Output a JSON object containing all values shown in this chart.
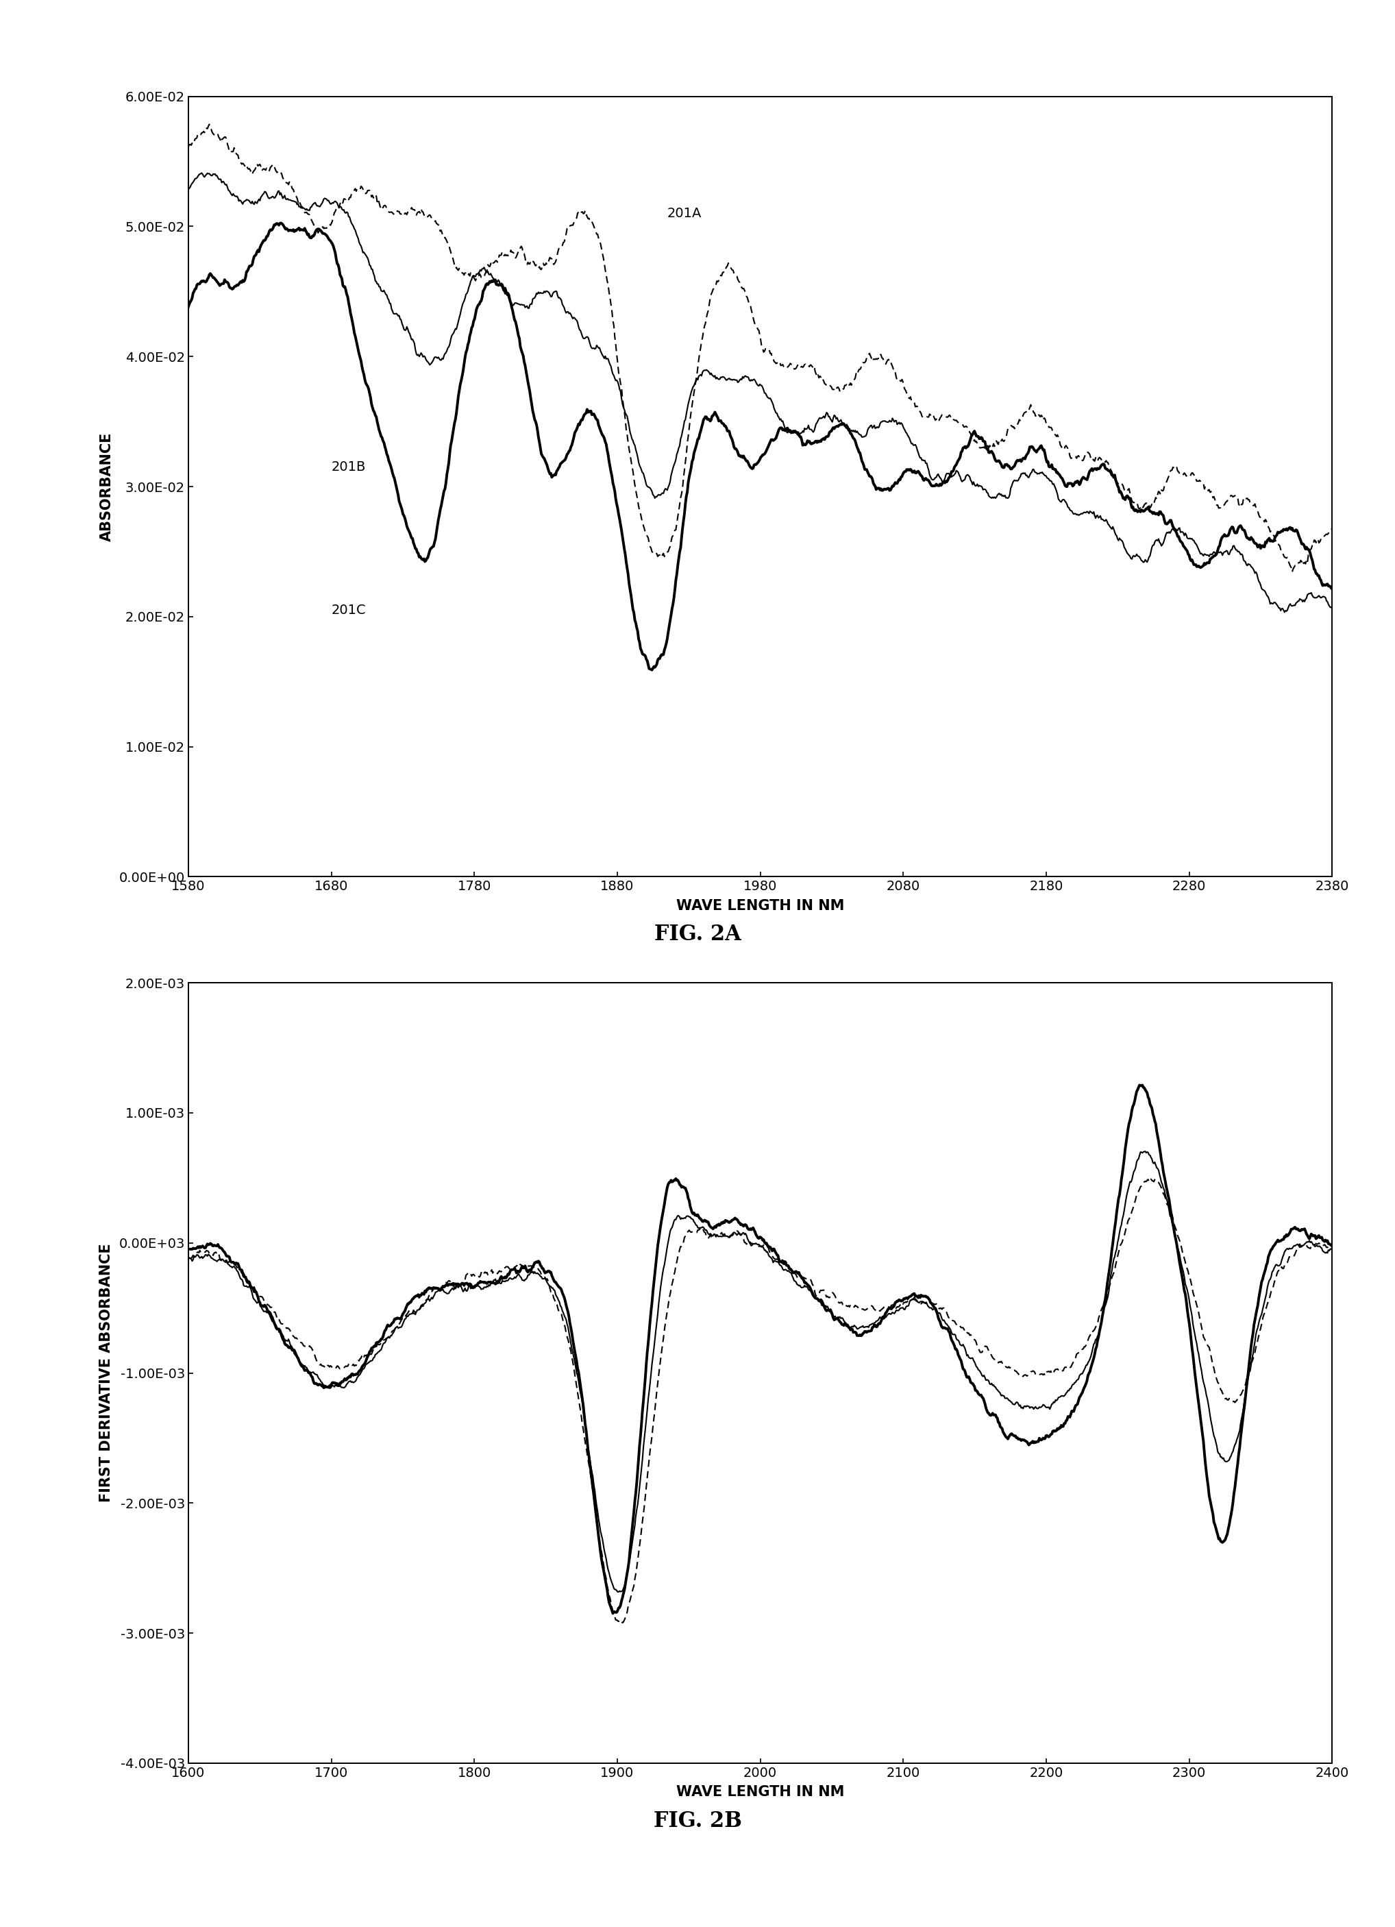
{
  "fig2a": {
    "title": "FIG. 2A",
    "xlabel": "WAVE LENGTH IN NM",
    "ylabel": "ABSORBANCE",
    "xlim": [
      1580,
      2380
    ],
    "ylim": [
      0.0,
      0.06
    ],
    "xticks": [
      1580,
      1680,
      1780,
      1880,
      1980,
      2080,
      2180,
      2280,
      2380
    ],
    "ytick_vals": [
      0.0,
      0.01,
      0.02,
      0.03,
      0.04,
      0.05,
      0.06
    ],
    "ytick_labels": [
      "0.00E+00",
      "1.00E-02",
      "2.00E-02",
      "3.00E-02",
      "4.00E-02",
      "5.00E-02",
      "6.00E-02"
    ],
    "label_201A": "201A",
    "label_201B": "201B",
    "label_201C": "201C"
  },
  "fig2b": {
    "title": "FIG. 2B",
    "xlabel": "WAVE LENGTH IN NM",
    "ylabel": "FIRST DERIVATIVE ABSORBANCE",
    "xlim": [
      1600,
      2400
    ],
    "ylim": [
      -0.004,
      0.002
    ],
    "xticks": [
      1600,
      1700,
      1800,
      1900,
      2000,
      2100,
      2200,
      2300,
      2400
    ],
    "ytick_vals": [
      -0.004,
      -0.003,
      -0.002,
      -0.001,
      0.0,
      0.001,
      0.002
    ],
    "ytick_labels": [
      "-4.00E-03",
      "-3.00E-03",
      "-2.00E-03",
      "-1.00E-03",
      "0.00E+03",
      "1.00E-03",
      "2.00E-03"
    ]
  }
}
